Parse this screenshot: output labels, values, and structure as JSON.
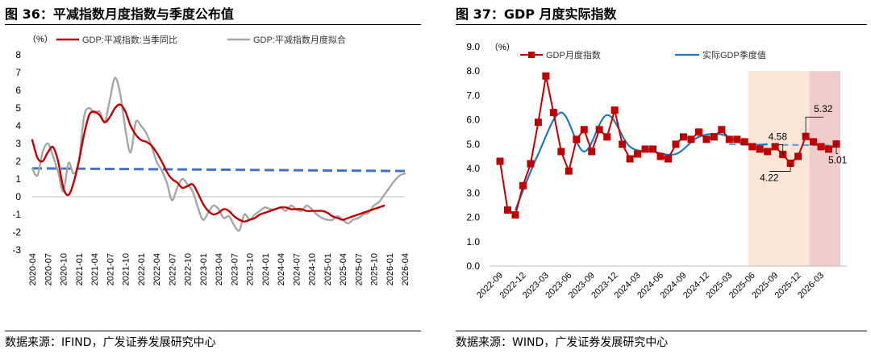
{
  "panels": [
    {
      "title": "图 36：平减指数月度指数与季度公布值",
      "source": "数据来源：IFIND，广发证券发展研究中心"
    },
    {
      "title": "图 37：GDP 月度实际指数",
      "source": "数据来源：WIND，广发证券发展研究中心"
    }
  ],
  "chart_data": [
    {
      "type": "line",
      "unit_label": "（%）",
      "ylim": [
        -3,
        8
      ],
      "yticks": [
        "8",
        "7",
        "6",
        "5",
        "4",
        "3",
        "2",
        "1",
        "0",
        "-1",
        "-2",
        "-3"
      ],
      "xticks": [
        "2020-04",
        "2020-07",
        "2020-10",
        "2021-01",
        "2021-04",
        "2021-07",
        "2021-10",
        "2022-01",
        "2022-04",
        "2022-07",
        "2022-10",
        "2023-01",
        "2023-04",
        "2023-07",
        "2023-10",
        "2024-01",
        "2024-04",
        "2024-07",
        "2024-10",
        "2025-01",
        "2025-04",
        "2025-07",
        "2025-10",
        "2026-01",
        "2026-04"
      ],
      "grid": false,
      "legend_position": "top",
      "colors": {
        "quarterly": "#C00000",
        "monthly": "#A6A6A6",
        "hline": "#4472C4"
      },
      "series": [
        {
          "name": "GDP:平减指数:当季同比",
          "style": "red-solid",
          "x": [
            0,
            1,
            2,
            3,
            4,
            5,
            6,
            7,
            8,
            9,
            10,
            11,
            12,
            13,
            14,
            15,
            16,
            17,
            18,
            19,
            20,
            21,
            22,
            23,
            24,
            25,
            26,
            27,
            28,
            29,
            30,
            31,
            32,
            33,
            34,
            35,
            36,
            37,
            38,
            39,
            40,
            41,
            42,
            43,
            44,
            45,
            46,
            47,
            48,
            49,
            50,
            51,
            52,
            53,
            54,
            55,
            56,
            57,
            58,
            59,
            60,
            61,
            62,
            63,
            64,
            65,
            66,
            67,
            68
          ],
          "values": [
            3.2,
            2.2,
            2.0,
            2.5,
            2.8,
            2.0,
            0.5,
            0.1,
            0.8,
            2.0,
            3.5,
            4.6,
            4.8,
            4.6,
            4.2,
            4.5,
            5.0,
            5.2,
            4.8,
            4.0,
            3.5,
            3.2,
            3.1,
            2.9,
            2.5,
            2.0,
            1.4,
            1.0,
            0.8,
            0.5,
            0.6,
            0.7,
            0.2,
            -0.4,
            -0.8,
            -1.0,
            -0.9,
            -0.7,
            -0.8,
            -1.1,
            -1.3,
            -1.4,
            -1.3,
            -1.2,
            -1.0,
            -0.9,
            -0.8,
            -0.7,
            -0.6,
            -0.6,
            -0.7,
            -0.7,
            -0.7,
            -0.8,
            -0.8,
            -0.8,
            -0.8,
            -0.9,
            -1.1,
            -1.2,
            -1.3,
            -1.2,
            -1.1,
            -1.0,
            -0.9,
            -0.8,
            -0.7,
            -0.6,
            -0.5
          ]
        },
        {
          "name": "GDP:平减指数月度拟合",
          "style": "gray-solid",
          "x": [
            0,
            1,
            2,
            3,
            4,
            5,
            6,
            7,
            8,
            9,
            10,
            11,
            12,
            13,
            14,
            15,
            16,
            17,
            18,
            19,
            20,
            21,
            22,
            23,
            24,
            25,
            26,
            27,
            28,
            29,
            30,
            31,
            32,
            33,
            34,
            35,
            36,
            37,
            38,
            39,
            40,
            41,
            42,
            43,
            44,
            45,
            46,
            47,
            48,
            49,
            50,
            51,
            52,
            53,
            54,
            55,
            56,
            57,
            58,
            59,
            60,
            61,
            62,
            63,
            64,
            65,
            66,
            67,
            68,
            69,
            70,
            71,
            72
          ],
          "values": [
            1.6,
            1.2,
            2.5,
            3.0,
            2.3,
            1.4,
            0.3,
            1.9,
            1.3,
            2.0,
            4.5,
            5.0,
            4.7,
            4.8,
            4.2,
            5.5,
            6.7,
            5.8,
            3.8,
            2.5,
            4.2,
            4.0,
            3.6,
            2.9,
            2.0,
            1.5,
            0.8,
            -0.2,
            0.5,
            1.0,
            0.7,
            0.3,
            -0.6,
            -1.3,
            -0.9,
            -0.5,
            -0.7,
            -1.2,
            -1.1,
            -1.6,
            -1.9,
            -1.0,
            -1.3,
            -1.0,
            -0.8,
            -0.6,
            -0.7,
            -0.7,
            -0.6,
            -0.8,
            -0.5,
            -0.7,
            -0.8,
            -0.5,
            -0.7,
            -1.0,
            -1.2,
            -1.3,
            -1.3,
            -1.1,
            -1.3,
            -1.5,
            -1.3,
            -1.2,
            -1.0,
            -0.9,
            -0.5,
            -0.3,
            0.1,
            0.5,
            0.9,
            1.2,
            1.3
          ]
        },
        {
          "name": "",
          "style": "blue-dashed",
          "x": [
            0,
            72
          ],
          "values": [
            1.6,
            1.45
          ]
        }
      ]
    },
    {
      "type": "line",
      "unit_label": "（%）",
      "ylim": [
        0,
        9
      ],
      "yticks": [
        "9.0",
        "8.0",
        "7.0",
        "6.0",
        "5.0",
        "4.0",
        "3.0",
        "2.0",
        "1.0",
        "0.0"
      ],
      "xticks": [
        "2022-09",
        "2022-12",
        "2023-03",
        "2023-06",
        "2023-09",
        "2023-12",
        "2024-03",
        "2024-06",
        "2024-09",
        "2024-12",
        "2025-03",
        "2025-06",
        "2025-09",
        "2025-12",
        "2026-03"
      ],
      "grid": false,
      "legend_position": "top",
      "colors": {
        "monthly": "#C00000",
        "quarterly": "#1F77C4",
        "shade1": "#FBE5D6",
        "shade2": "#F2CBCB",
        "trend": "#5B9BD5"
      },
      "shaded_ranges": [
        [
          33,
          40
        ],
        [
          41,
          44
        ]
      ],
      "series": [
        {
          "name": "GDP月度指数",
          "style": "red-markers",
          "x": [
            0,
            1,
            2,
            3,
            4,
            5,
            6,
            7,
            8,
            9,
            10,
            11,
            12,
            13,
            14,
            15,
            16,
            17,
            18,
            19,
            20,
            21,
            22,
            23,
            24,
            25,
            26,
            27,
            28,
            29,
            30,
            31,
            32,
            33,
            34,
            35,
            36,
            37,
            38,
            39,
            40,
            41,
            42,
            43,
            44
          ],
          "values": [
            4.3,
            2.3,
            2.1,
            3.3,
            4.2,
            5.9,
            7.8,
            6.3,
            4.7,
            3.9,
            5.2,
            5.6,
            4.7,
            5.6,
            5.3,
            6.4,
            5.0,
            4.4,
            4.6,
            4.8,
            4.8,
            4.5,
            4.4,
            5.0,
            5.3,
            5.2,
            5.5,
            5.2,
            5.3,
            5.6,
            5.2,
            5.2,
            5.1,
            4.9,
            4.8,
            4.7,
            4.9,
            4.58,
            4.22,
            4.5,
            5.32,
            5.1,
            4.9,
            4.8,
            5.01
          ]
        },
        {
          "name": "实际GDP季度值",
          "style": "blue-smooth",
          "x": [
            2,
            5,
            8,
            11,
            14,
            17,
            20,
            23,
            26,
            29,
            32,
            35
          ],
          "values": [
            2.3,
            4.6,
            6.3,
            4.7,
            6.2,
            4.9,
            4.7,
            4.6,
            5.3,
            5.4,
            5.0,
            5.0
          ]
        }
      ],
      "trend_line": {
        "x": [
          30,
          44
        ],
        "values": [
          5.0,
          4.95
        ]
      },
      "annotations": [
        {
          "text": "5.32",
          "x": 40,
          "y": 5.32
        },
        {
          "text": "4.58",
          "x": 37,
          "y": 4.58
        },
        {
          "text": "4.22",
          "x": 38,
          "y": 4.22
        },
        {
          "text": "5.01",
          "x": 44,
          "y": 5.01
        }
      ]
    }
  ]
}
